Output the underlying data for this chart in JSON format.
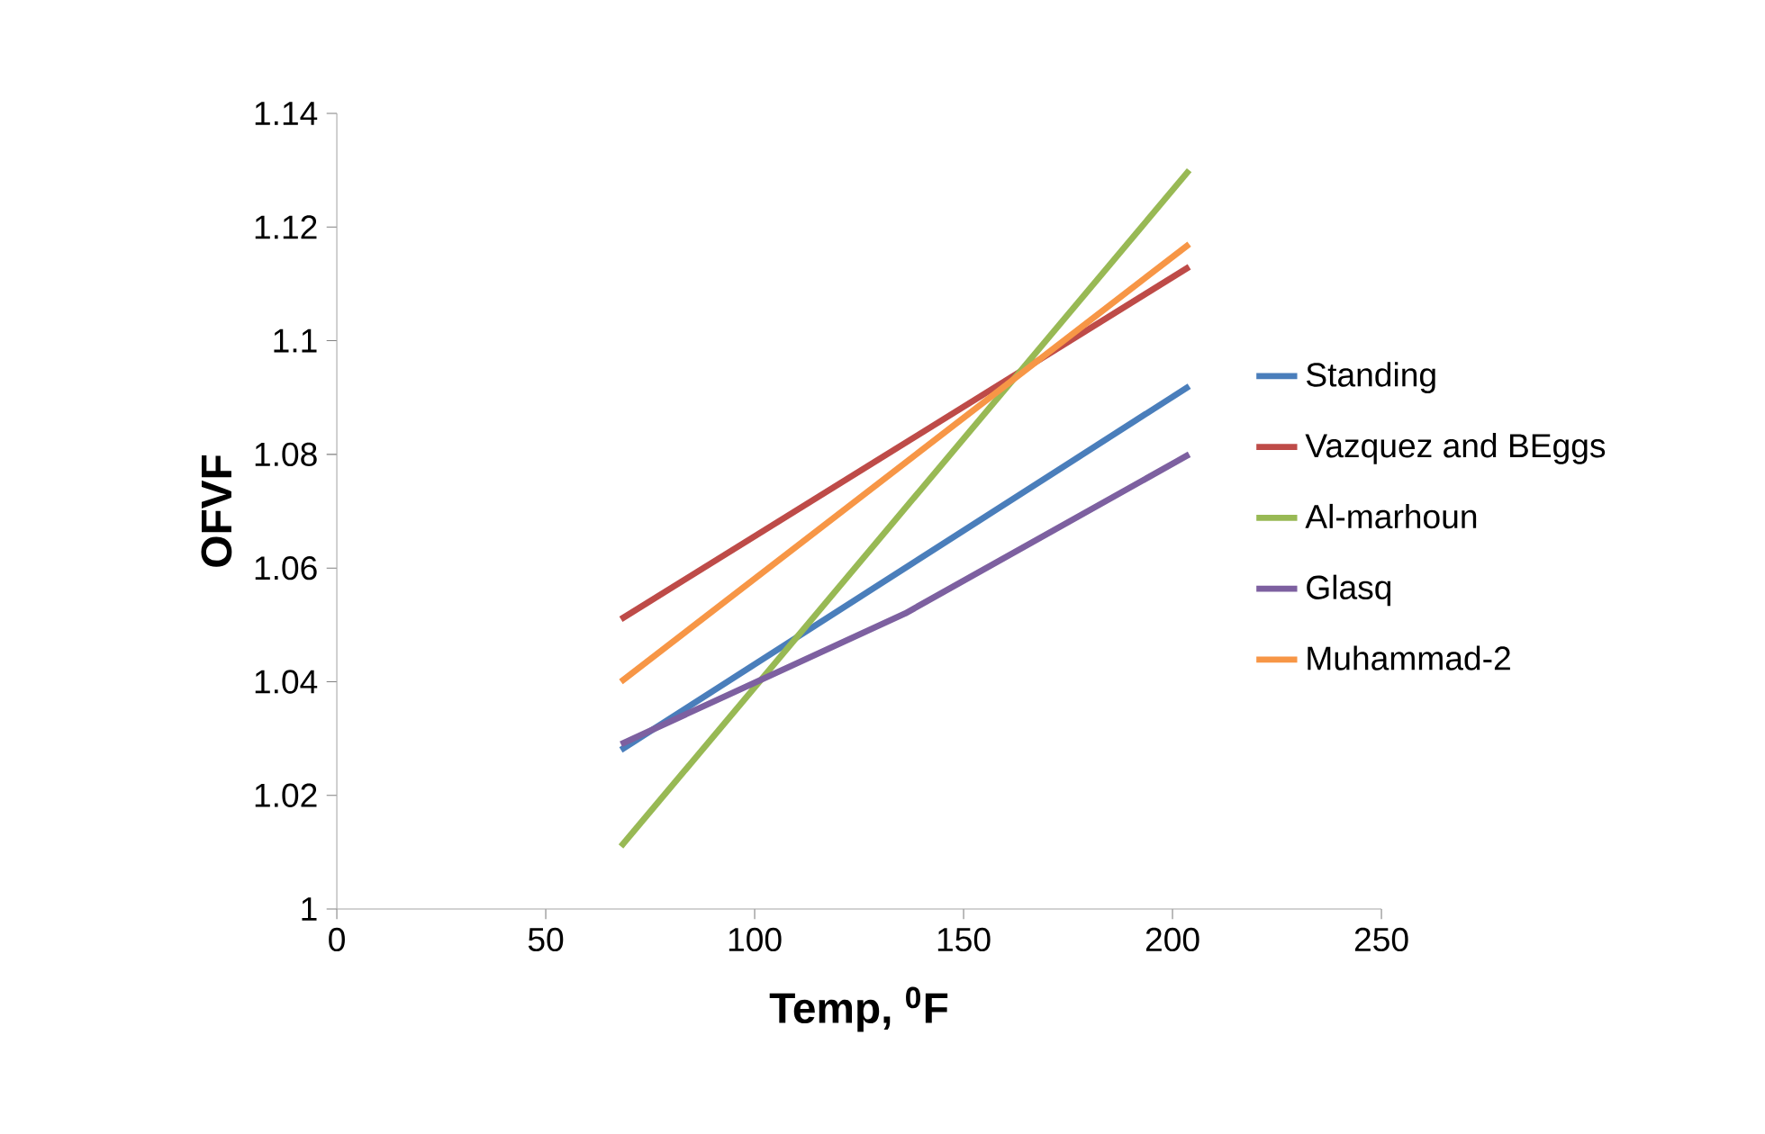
{
  "chart_data": {
    "type": "line",
    "xlabel": "Temp, $^{0}$F",
    "ylabel": "OFVF",
    "xlim": [
      0,
      250
    ],
    "xticks": [
      0,
      50,
      100,
      150,
      200,
      250
    ],
    "ylim": [
      1,
      1.14
    ],
    "yticks": [
      1,
      1.02,
      1.04,
      1.06,
      1.08,
      1.1,
      1.12,
      1.14
    ],
    "grid": false,
    "legend": "right",
    "marker": "none",
    "line_style": "solid",
    "series": [
      {
        "name": "Standing",
        "color": "#4a7ebb",
        "x": [
          68,
          204
        ],
        "values": [
          1.028,
          1.092
        ]
      },
      {
        "name": "Vazquez and BEggs",
        "color": "#be4b48",
        "x": [
          68,
          204
        ],
        "values": [
          1.051,
          1.113
        ]
      },
      {
        "name": "Al-marhoun",
        "color": "#98b954",
        "x": [
          68,
          204
        ],
        "values": [
          1.011,
          1.13
        ]
      },
      {
        "name": "Glasq",
        "color": "#7d60a0",
        "x": [
          68,
          136,
          204
        ],
        "values": [
          1.029,
          1.052,
          1.08
        ]
      },
      {
        "name": "Muhammad-2",
        "color": "#f79646",
        "x": [
          68,
          204
        ],
        "values": [
          1.04,
          1.117
        ]
      }
    ]
  }
}
